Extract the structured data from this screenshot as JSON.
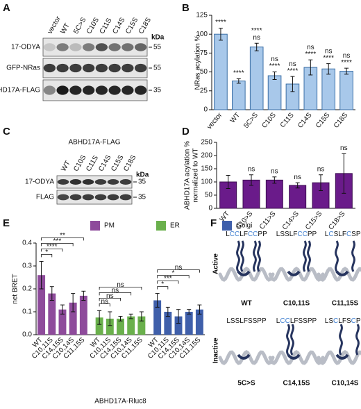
{
  "blots": [
    {
      "panel": "A",
      "lanes": [
        "vector",
        "WT",
        "5C>S",
        "C10S",
        "C11S",
        "C14S",
        "C15S",
        "C18S"
      ],
      "unit": "kDa",
      "rows": [
        {
          "label": "17-ODYA",
          "marker": 55
        },
        {
          "label": "GFP-NRas",
          "marker": 55
        },
        {
          "label": "ABHD17A-FLAG",
          "marker": 35
        }
      ]
    },
    {
      "panel": "C",
      "title": "ABHD17A-FLAG",
      "lanes": [
        "WT",
        "C10S",
        "C11S",
        "C14S",
        "C15S",
        "C18S"
      ],
      "unit": "kDa",
      "rows": [
        {
          "label": "17-ODYA",
          "marker": 35
        },
        {
          "label": "FLAG",
          "marker": 35
        }
      ]
    }
  ],
  "chart_data": [
    {
      "type": "bar",
      "panel": "B",
      "y_label": [
        "NRas acylation %"
      ],
      "categories": [
        "vector",
        "WT",
        "5C>S",
        "C10S",
        "C11S",
        "C14S",
        "C15S",
        "C18S"
      ],
      "values": [
        100,
        38,
        83,
        45,
        34,
        56,
        54,
        51
      ],
      "errors": [
        8,
        3,
        5,
        5,
        10,
        10,
        7,
        4
      ],
      "color": "#a8c8ea",
      "ylim": [
        0,
        125
      ],
      "yticks": [
        0,
        25,
        50,
        75,
        100,
        125
      ],
      "annotations": [
        {
          "color": "#000000",
          "labels": [
            null,
            "****",
            "ns",
            "****",
            "****",
            "****",
            "****",
            "****"
          ]
        },
        {
          "color": "#4a90d9",
          "labels": [
            "****",
            null,
            "****",
            "ns",
            "ns",
            "ns",
            "ns",
            "ns"
          ]
        }
      ]
    },
    {
      "type": "bar",
      "panel": "D",
      "y_label": [
        "ABHD17A acylation %",
        "normalized to WT"
      ],
      "categories": [
        "WT",
        "C10>S",
        "C11>S",
        "C14>S",
        "C15>S",
        "C18>S"
      ],
      "values": [
        100,
        107,
        107,
        87,
        97,
        132
      ],
      "errors": [
        25,
        20,
        12,
        10,
        30,
        75
      ],
      "color": "#6a1b8a",
      "ylim": [
        0,
        250
      ],
      "yticks": [
        0,
        50,
        100,
        150,
        200,
        250
      ],
      "annotations": [
        {
          "color": "#4a90d9",
          "labels": [
            null,
            "ns",
            "ns",
            "ns",
            "ns",
            "ns"
          ]
        }
      ]
    },
    {
      "type": "bar",
      "panel": "E",
      "y_label": [
        "net BRET"
      ],
      "x_label": "ABHD17A-Rluc8",
      "categories": [
        "WT",
        "C10,11S",
        "C14,15S",
        "C10,14S",
        "C11,15S"
      ],
      "ylim": [
        0,
        0.4
      ],
      "yticks": [
        {
          "value": 0,
          "label": "0.0"
        },
        0.1,
        0.2,
        0.3,
        0.4
      ],
      "series": [
        {
          "name": "PM",
          "color": "#8e4b9b",
          "values": [
            0.26,
            0.18,
            0.11,
            0.14,
            0.17
          ],
          "errors": [
            0.06,
            0.03,
            0.02,
            0.04,
            0.02
          ],
          "significance": [
            "*",
            "****",
            "***",
            "**"
          ]
        },
        {
          "name": "ER",
          "color": "#6ab04c",
          "values": [
            0.075,
            0.07,
            0.07,
            0.08,
            0.08
          ],
          "errors": [
            0.03,
            0.03,
            0.01,
            0.01,
            0.02
          ],
          "significance": [
            "ns",
            "ns",
            "ns",
            "ns"
          ]
        },
        {
          "name": "Golgi",
          "color": "#3f5faa",
          "values": [
            0.15,
            0.1,
            0.08,
            0.1,
            0.11
          ],
          "errors": [
            0.03,
            0.02,
            0.03,
            0.01,
            0.02
          ],
          "significance": [
            "*",
            "***",
            "*",
            "ns"
          ]
        }
      ]
    }
  ],
  "structures": {
    "panel": "F",
    "states": [
      {
        "label": "Active",
        "items": [
          {
            "sequence": "LCCLFCCPP",
            "name": "WT"
          },
          {
            "sequence": "LSSLFCCPP",
            "name": "C10,11S"
          },
          {
            "sequence": "LCSLFCSPP",
            "name": "C11,15S"
          }
        ]
      },
      {
        "label": "Inactive",
        "items": [
          {
            "sequence": "LSSLFSSPP",
            "name": "5C>S"
          },
          {
            "sequence": "LCCLFSSPP",
            "name": "C14,15S"
          },
          {
            "sequence": "LSCLFSCPP",
            "name": "C10,14S"
          }
        ]
      }
    ]
  }
}
